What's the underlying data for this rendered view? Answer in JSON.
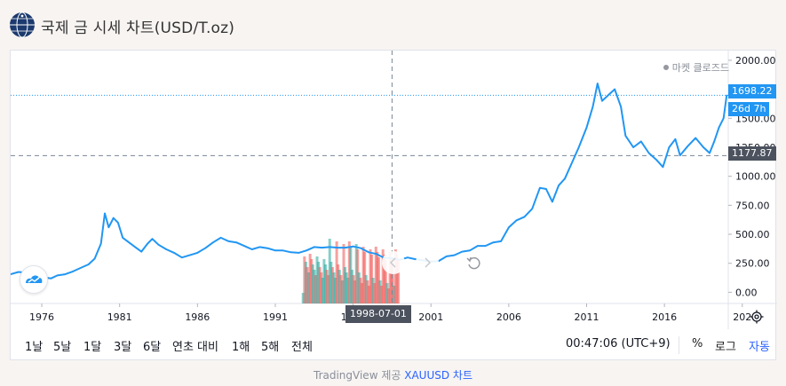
{
  "header": {
    "title": "국제 금 시세 차트(USD/T.oz)",
    "logo_icon": "globe-logo-icon"
  },
  "chart": {
    "market_status": "마켓 클로즈드",
    "price_axis_labels": [
      "2000.00",
      "1750.00",
      "1500.00",
      "1250.00",
      "1000.00",
      "750.00",
      "500.00",
      "250.00",
      "0.00"
    ],
    "time_axis_labels": [
      "1976",
      "1981",
      "1986",
      "1991",
      "1996",
      "2001",
      "2006",
      "2011",
      "2016",
      "202"
    ],
    "last_price_label": "1698.22",
    "countdown_label": "26d 7h",
    "crosshair_price_label": "1177.87",
    "crosshair_date_label": "1998-07-01",
    "line_color": "#2196f3",
    "up_volume_color": "#26a69a",
    "down_volume_color": "#ef5350",
    "last_price_color": "#2196f3",
    "crosshair_tag_color": "#4c525e"
  },
  "toolbar": {
    "ranges": [
      "1날",
      "5날",
      "1달",
      "3달",
      "6달",
      "연초 대비",
      "1해",
      "5해",
      "전체"
    ],
    "clock": "00:47:06 (UTC+9)",
    "percent_label": "%",
    "log_label": "로그",
    "auto_label": "자동"
  },
  "footer": {
    "prefix": "TradingView 제공",
    "link": "XAUUSD 차트"
  },
  "chart_data": {
    "type": "line",
    "title": "",
    "xlabel": "",
    "ylabel": "",
    "ylim": [
      -20,
      2030
    ],
    "xlim": [
      1974.0,
      2020.1
    ],
    "x_ticks": [
      1976,
      1981,
      1986,
      1991,
      1996,
      2001,
      2006,
      2011,
      2016
    ],
    "y_ticks": [
      0,
      250,
      500,
      750,
      1000,
      1250,
      1500,
      1750,
      2000
    ],
    "grid": false,
    "series": [
      {
        "x": [
          1974.0,
          1974.5,
          1975.0,
          1975.5,
          1976.0,
          1976.6,
          1977.0,
          1977.5,
          1978.0,
          1978.5,
          1979.0,
          1979.4,
          1979.8,
          1980.05,
          1980.3,
          1980.6,
          1980.9,
          1981.2,
          1981.6,
          1982.0,
          1982.4,
          1982.8,
          1983.1,
          1983.5,
          1984.0,
          1984.5,
          1985.0,
          1985.5,
          1986.0,
          1986.5,
          1987.0,
          1987.5,
          1988.0,
          1988.5,
          1989.0,
          1989.5,
          1990.0,
          1990.5,
          1991.0,
          1991.5,
          1992.0,
          1992.5,
          1993.0,
          1993.5,
          1994.0,
          1994.5,
          1995.0,
          1995.5,
          1996.0,
          1996.5,
          1997.0,
          1997.5,
          1998.0,
          1998.5,
          1999.0,
          1999.5,
          2000.0,
          2000.5,
          2001.0,
          2001.5,
          2002.0,
          2002.5,
          2003.0,
          2003.5,
          2004.0,
          2004.5,
          2005.0,
          2005.5,
          2006.0,
          2006.5,
          2007.0,
          2007.5,
          2008.0,
          2008.4,
          2008.8,
          2009.2,
          2009.6,
          2010.0,
          2010.5,
          2011.0,
          2011.4,
          2011.7,
          2012.0,
          2012.4,
          2012.8,
          2013.2,
          2013.5,
          2014.0,
          2014.5,
          2015.0,
          2015.5,
          2015.9,
          2016.3,
          2016.7,
          2017.0,
          2017.5,
          2018.0,
          2018.5,
          2018.9,
          2019.2,
          2019.5,
          2019.8,
          2020.0
        ],
        "y": [
          155,
          175,
          170,
          150,
          130,
          120,
          145,
          155,
          180,
          210,
          240,
          290,
          420,
          680,
          560,
          640,
          600,
          470,
          430,
          390,
          350,
          420,
          460,
          410,
          370,
          340,
          300,
          320,
          340,
          380,
          430,
          470,
          440,
          430,
          400,
          370,
          390,
          380,
          360,
          360,
          345,
          340,
          360,
          390,
          385,
          390,
          385,
          385,
          395,
          380,
          345,
          330,
          295,
          295,
          280,
          300,
          285,
          275,
          265,
          270,
          310,
          320,
          350,
          360,
          400,
          400,
          430,
          440,
          560,
          620,
          650,
          720,
          900,
          890,
          780,
          920,
          980,
          1100,
          1250,
          1420,
          1600,
          1800,
          1650,
          1700,
          1750,
          1600,
          1350,
          1250,
          1300,
          1200,
          1140,
          1080,
          1250,
          1320,
          1180,
          1260,
          1330,
          1250,
          1200,
          1300,
          1420,
          1500,
          1698
        ]
      }
    ],
    "volume_note_start": 1992.7,
    "volume_note_end": 1998.9,
    "last_price": 1698.22,
    "crosshair_price": 1177.87,
    "crosshair_date": "1998-07-01"
  }
}
